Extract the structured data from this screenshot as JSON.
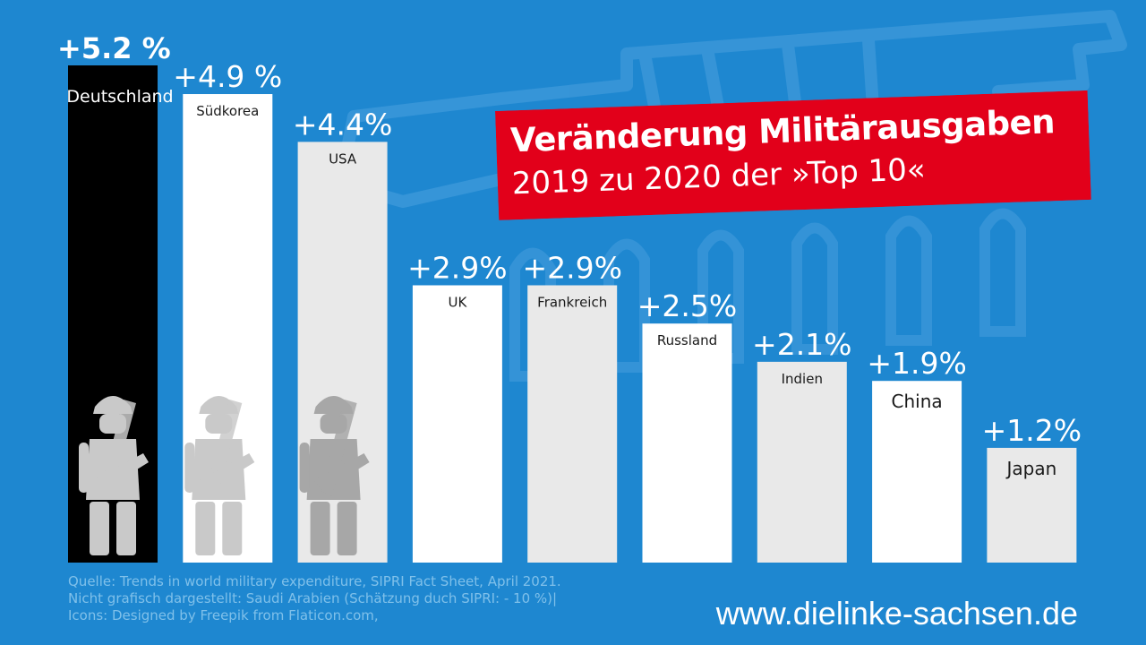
{
  "title": {
    "line1": "Veränderung Militärausgaben",
    "line2": "2019 zu 2020 der »Top 10«"
  },
  "footer": {
    "source": "Quelle: Trends in world military expenditure, SIPRI Fact Sheet, April 2021.",
    "note": "Nicht grafisch dargestellt: Saudi Arabien (Schätzung duch SIPRI: - 10 %)|",
    "icons": "Icons: Designed by Freepik from Flaticon.com,"
  },
  "website": "www.dielinke-sachsen.de",
  "colors": {
    "background": "#1e87d0",
    "highlight_bar": "#000000",
    "bar_white": "#ffffff",
    "bar_light_gray": "#e9e9e9",
    "title_box": "#e2001a",
    "text_white": "#ffffff",
    "icon_gray": "#c9c9c9",
    "icon_dark_gray": "#a7a7a7",
    "footer_text": "#7fc0ea"
  },
  "chart_data": {
    "type": "bar",
    "title": "Veränderung Militärausgaben 2019 zu 2020 der »Top 10«",
    "categories": [
      "Deutschland",
      "Südkorea",
      "USA",
      "UK",
      "Frankreich",
      "Russland",
      "Indien",
      "China",
      "Japan"
    ],
    "values": [
      5.2,
      4.9,
      4.4,
      2.9,
      2.9,
      2.5,
      2.1,
      1.9,
      1.2
    ],
    "value_labels": [
      "+5.2 %",
      "+4.9 %",
      "+4.4%",
      "+2.9%",
      "+2.9%",
      "+2.5%",
      "+2.1%",
      "+1.9%",
      "+1.2%"
    ],
    "bar_colors": [
      "#000000",
      "#ffffff",
      "#e9e9e9",
      "#ffffff",
      "#e9e9e9",
      "#ffffff",
      "#e9e9e9",
      "#ffffff",
      "#e9e9e9"
    ],
    "soldier_icons": [
      "soldier-icon",
      "soldier-icon",
      "soldier-icon"
    ],
    "xlabel": "",
    "ylabel": "",
    "ylim": [
      0,
      5.2
    ],
    "grid": false,
    "legend": "none"
  }
}
